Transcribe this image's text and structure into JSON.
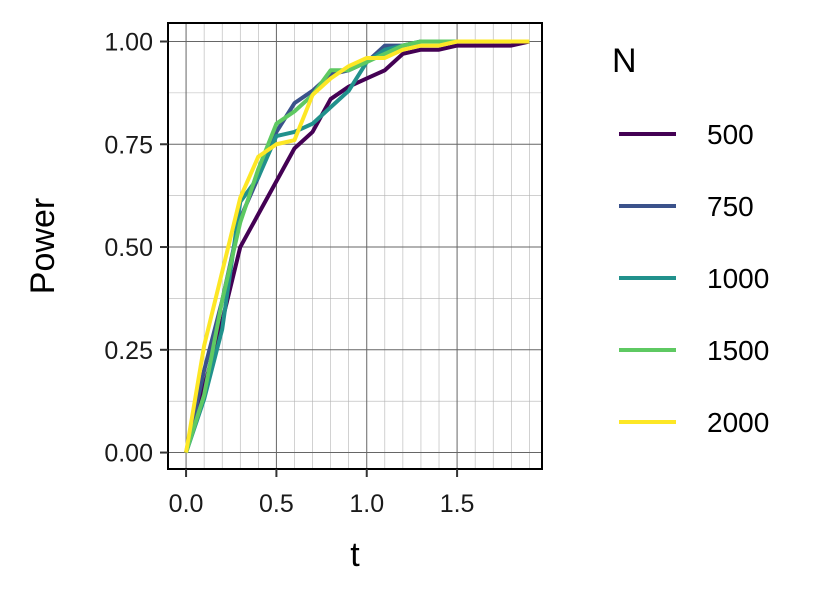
{
  "chart_data": {
    "type": "line",
    "xlabel": "t",
    "ylabel": "Power",
    "xlim": [
      -0.1,
      1.97
    ],
    "ylim": [
      -0.04,
      1.045
    ],
    "x_ticks": [
      "0.0",
      "0.5",
      "1.0",
      "1.5"
    ],
    "y_ticks": [
      "0.00",
      "0.25",
      "0.50",
      "0.75",
      "1.00"
    ],
    "grid": true,
    "legend_title": "N",
    "legend_position": "right",
    "x": [
      0.0,
      0.1,
      0.2,
      0.3,
      0.4,
      0.5,
      0.6,
      0.7,
      0.8,
      0.9,
      1.0,
      1.1,
      1.2,
      1.3,
      1.4,
      1.5,
      1.6,
      1.7,
      1.8,
      1.9
    ],
    "series": [
      {
        "name": "500",
        "color": "#440154",
        "values": [
          0.0,
          0.16,
          0.32,
          0.5,
          0.58,
          0.66,
          0.74,
          0.78,
          0.86,
          0.89,
          0.91,
          0.93,
          0.97,
          0.98,
          0.98,
          0.99,
          0.99,
          0.99,
          0.99,
          1.0
        ]
      },
      {
        "name": "750",
        "color": "#3b528b",
        "values": [
          0.0,
          0.2,
          0.37,
          0.57,
          0.67,
          0.78,
          0.85,
          0.88,
          0.92,
          0.93,
          0.95,
          0.99,
          0.99,
          1.0,
          1.0,
          1.0,
          1.0,
          1.0,
          1.0,
          1.0
        ]
      },
      {
        "name": "1000",
        "color": "#21918c",
        "values": [
          0.0,
          0.13,
          0.3,
          0.61,
          0.67,
          0.77,
          0.78,
          0.8,
          0.84,
          0.88,
          0.95,
          0.98,
          0.99,
          1.0,
          1.0,
          1.0,
          1.0,
          1.0,
          1.0,
          1.0
        ]
      },
      {
        "name": "1500",
        "color": "#5ec962",
        "values": [
          0.0,
          0.14,
          0.37,
          0.56,
          0.69,
          0.8,
          0.83,
          0.87,
          0.93,
          0.93,
          0.95,
          0.97,
          0.99,
          1.0,
          1.0,
          1.0,
          1.0,
          1.0,
          1.0,
          1.0
        ]
      },
      {
        "name": "2000",
        "color": "#fde725",
        "values": [
          0.0,
          0.26,
          0.44,
          0.62,
          0.72,
          0.75,
          0.76,
          0.87,
          0.91,
          0.94,
          0.96,
          0.96,
          0.98,
          0.99,
          0.99,
          1.0,
          1.0,
          1.0,
          1.0,
          1.0
        ]
      }
    ]
  }
}
